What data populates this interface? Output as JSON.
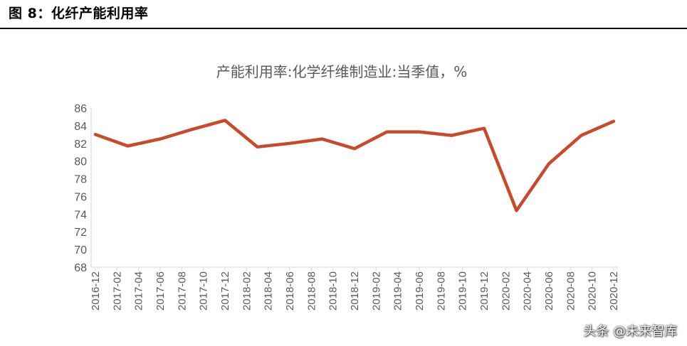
{
  "figure": {
    "title": "图 8：化纤产能利用率"
  },
  "chart_data": {
    "type": "line",
    "title": "产能利用率:化学纤维制造业:当季值，%",
    "xlabel": "",
    "ylabel": "",
    "ylim": [
      68,
      86
    ],
    "yticks": [
      68,
      70,
      72,
      74,
      76,
      78,
      80,
      82,
      84,
      86
    ],
    "x": [
      "2016-12",
      "2017-02",
      "2017-04",
      "2017-06",
      "2017-08",
      "2017-10",
      "2017-12",
      "2018-02",
      "2018-04",
      "2018-06",
      "2018-08",
      "2018-10",
      "2018-12",
      "2019-02",
      "2019-04",
      "2019-06",
      "2019-08",
      "2019-10",
      "2019-12",
      "2020-02",
      "2020-04",
      "2020-06",
      "2020-08",
      "2020-10",
      "2020-12"
    ],
    "series": [
      {
        "name": "",
        "color": "#C9492A",
        "points": [
          [
            "2016-12",
            83.0
          ],
          [
            "2017-03",
            81.7
          ],
          [
            "2017-06",
            82.5
          ],
          [
            "2017-09",
            83.6
          ],
          [
            "2017-12",
            84.6
          ],
          [
            "2018-03",
            81.6
          ],
          [
            "2018-06",
            82.0
          ],
          [
            "2018-09",
            82.5
          ],
          [
            "2018-12",
            81.4
          ],
          [
            "2019-03",
            83.3
          ],
          [
            "2019-06",
            83.3
          ],
          [
            "2019-09",
            82.9
          ],
          [
            "2019-12",
            83.7
          ],
          [
            "2020-03",
            74.4
          ],
          [
            "2020-06",
            79.7
          ],
          [
            "2020-09",
            82.9
          ],
          [
            "2020-12",
            84.5
          ]
        ]
      }
    ],
    "grid": false,
    "legend": "none"
  },
  "watermark": {
    "text": "头条 @未来智库"
  }
}
